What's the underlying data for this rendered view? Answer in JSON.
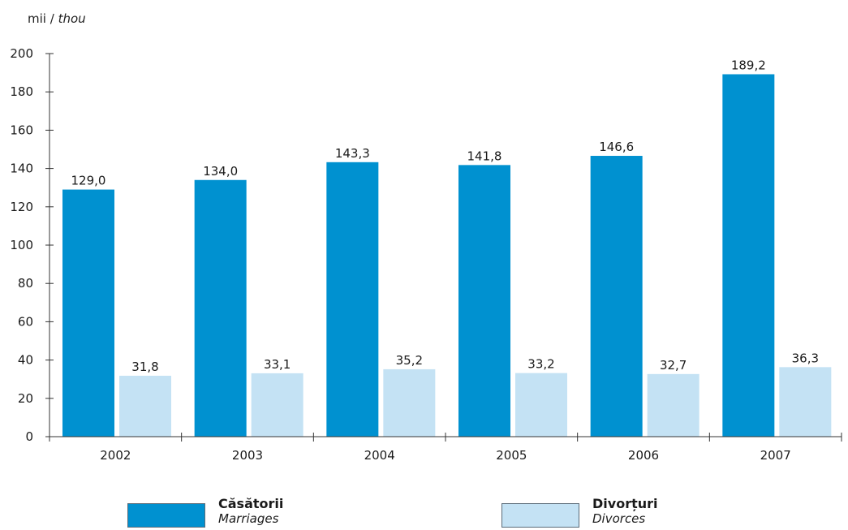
{
  "chart_data": {
    "type": "bar",
    "unit_label_ro": "mii",
    "unit_label_sep": "/",
    "unit_label_en": "thou",
    "categories": [
      "2002",
      "2003",
      "2004",
      "2005",
      "2006",
      "2007"
    ],
    "series": [
      {
        "name": "Căsătorii",
        "name_en": "Marriages",
        "color": "#0091d0",
        "values": [
          129.0,
          134.0,
          143.3,
          141.8,
          146.6,
          189.2
        ],
        "labels": [
          "129,0",
          "134,0",
          "143,3",
          "141,8",
          "146,6",
          "189,2"
        ]
      },
      {
        "name": "Divorțuri",
        "name_en": "Divorces",
        "color": "#c4e2f4",
        "values": [
          31.8,
          33.1,
          35.2,
          33.2,
          32.7,
          36.3
        ],
        "labels": [
          "31,8",
          "33,1",
          "35,2",
          "33,2",
          "32,7",
          "36,3"
        ]
      }
    ],
    "yticks": [
      "0",
      "20",
      "40",
      "60",
      "80",
      "100",
      "120",
      "140",
      "160",
      "180",
      "200"
    ],
    "ylim": [
      0,
      200
    ],
    "grid": false,
    "legend_position": "bottom"
  }
}
